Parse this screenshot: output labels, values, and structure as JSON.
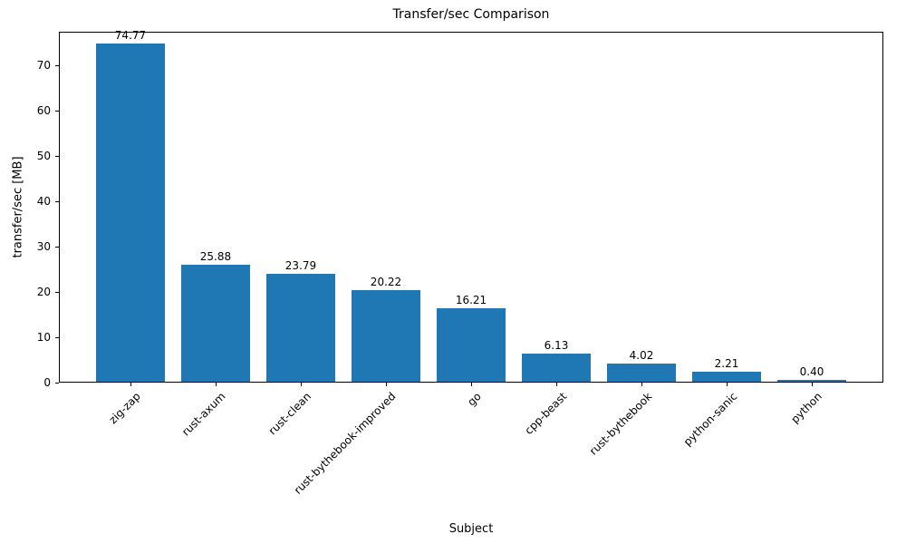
{
  "chart_data": {
    "type": "bar",
    "title": "Transfer/sec Comparison",
    "xlabel": "Subject",
    "ylabel": "transfer/sec [MB]",
    "categories": [
      "zig-zap",
      "rust-axum",
      "rust-clean",
      "rust-bythebook-improved",
      "go",
      "cpp-beast",
      "rust-bythebook",
      "python-sanic",
      "python"
    ],
    "values": [
      74.77,
      25.88,
      23.79,
      20.22,
      16.21,
      6.13,
      4.02,
      2.21,
      0.4
    ],
    "value_labels": [
      "74.77",
      "25.88",
      "23.79",
      "20.22",
      "16.21",
      "6.13",
      "4.02",
      "2.21",
      "0.40"
    ],
    "bar_color": "#1f77b4",
    "ylim": [
      0,
      77.5
    ],
    "yticks": [
      0,
      10,
      20,
      30,
      40,
      50,
      60,
      70
    ],
    "grid": false,
    "legend_position": "none"
  }
}
